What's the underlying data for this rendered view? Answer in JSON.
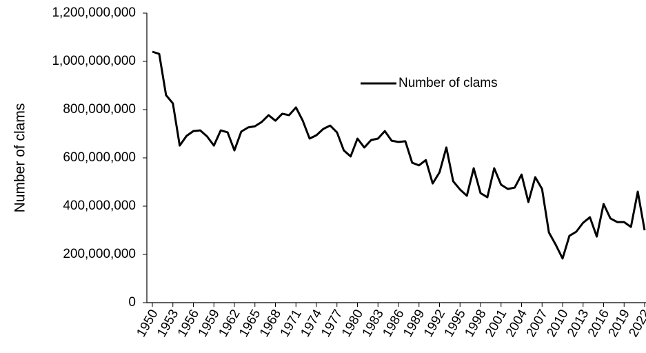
{
  "chart_data": {
    "type": "line",
    "ylabel": "Number of clams",
    "x": [
      1950,
      1951,
      1952,
      1953,
      1954,
      1955,
      1956,
      1957,
      1958,
      1959,
      1960,
      1961,
      1962,
      1963,
      1964,
      1965,
      1966,
      1967,
      1968,
      1969,
      1970,
      1971,
      1972,
      1973,
      1974,
      1975,
      1976,
      1977,
      1978,
      1979,
      1980,
      1981,
      1982,
      1983,
      1984,
      1985,
      1986,
      1987,
      1988,
      1989,
      1990,
      1991,
      1992,
      1993,
      1994,
      1995,
      1996,
      1997,
      1998,
      1999,
      2000,
      2001,
      2002,
      2003,
      2004,
      2005,
      2006,
      2007,
      2008,
      2009,
      2010,
      2011,
      2012,
      2013,
      2014,
      2015,
      2016,
      2017,
      2018,
      2019,
      2020,
      2021,
      2022
    ],
    "series": [
      {
        "name": "Number of clams",
        "color": "#000000",
        "values": [
          1040000000,
          1031000000,
          860000000,
          826000000,
          651000000,
          691000000,
          711000000,
          714000000,
          689000000,
          651000000,
          714000000,
          706000000,
          631000000,
          709000000,
          726000000,
          731000000,
          749000000,
          777000000,
          754000000,
          783000000,
          777000000,
          809000000,
          754000000,
          680000000,
          694000000,
          720000000,
          734000000,
          706000000,
          631000000,
          606000000,
          680000000,
          643000000,
          674000000,
          680000000,
          711000000,
          671000000,
          666000000,
          669000000,
          580000000,
          569000000,
          591000000,
          494000000,
          540000000,
          643000000,
          503000000,
          469000000,
          443000000,
          557000000,
          454000000,
          437000000,
          557000000,
          489000000,
          471000000,
          477000000,
          531000000,
          417000000,
          520000000,
          471000000,
          291000000,
          240000000,
          183000000,
          277000000,
          294000000,
          331000000,
          354000000,
          274000000,
          409000000,
          349000000,
          334000000,
          334000000,
          314000000,
          460000000,
          300000000
        ]
      }
    ],
    "xlim": [
      1950,
      2022
    ],
    "xticks": [
      1950,
      1953,
      1956,
      1959,
      1962,
      1965,
      1968,
      1971,
      1974,
      1977,
      1980,
      1983,
      1986,
      1989,
      1992,
      1995,
      1998,
      2001,
      2004,
      2007,
      2010,
      2013,
      2016,
      2019,
      2022
    ],
    "ylim": [
      0,
      1200000000
    ],
    "yticks": [
      0,
      {
        "value": 200000000,
        "label": "200,000,000"
      },
      {
        "value": 400000000,
        "label": "400,000,000"
      },
      {
        "value": 600000000,
        "label": "600,000,000"
      },
      {
        "value": 800000000,
        "label": "800,000,000"
      },
      {
        "value": 1000000000,
        "label": "1,000,000,000"
      },
      {
        "value": 1200000000,
        "label": "1,200,000,000"
      }
    ],
    "legend": "upper-right",
    "grid": false
  }
}
